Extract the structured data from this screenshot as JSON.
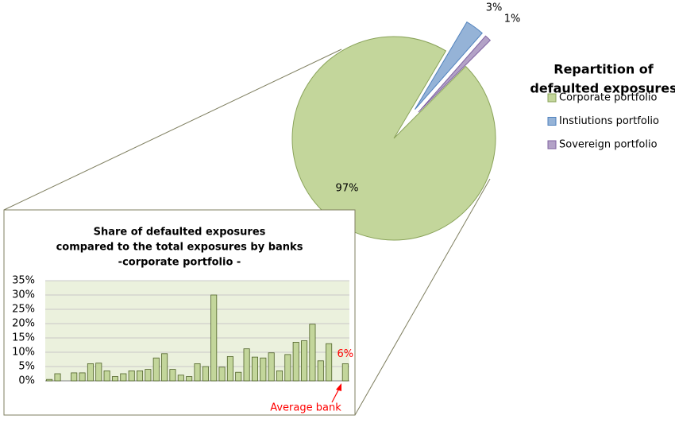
{
  "chart_data": [
    {
      "type": "pie",
      "legend_title": [
        "Repartition of",
        "defaulted exposures"
      ],
      "categories": [
        "Corporate portfolio",
        "Instiutions portfolio",
        "Sovereign portfolio"
      ],
      "values": [
        97,
        3,
        1
      ],
      "value_labels": [
        "97%",
        "3%",
        "1%"
      ],
      "colors": [
        "#c3d69b",
        "#95b3d7",
        "#b3a2c7"
      ],
      "legend": "right"
    },
    {
      "type": "bar",
      "title": [
        "Share of defaulted exposures",
        "compared to the total exposures  by banks",
        "-corporate portfolio -"
      ],
      "categories": [
        null,
        null,
        null,
        null,
        null,
        null,
        null,
        null,
        null,
        null,
        null,
        null,
        null,
        null,
        null,
        null,
        null,
        null,
        null,
        null,
        null,
        null,
        null,
        null,
        null,
        null,
        null,
        null,
        null,
        null,
        null,
        null,
        null,
        null,
        null,
        null,
        null
      ],
      "values": [
        0.5,
        2.5,
        null,
        2.8,
        2.8,
        6,
        6.2,
        3.5,
        1.5,
        2.5,
        3.5,
        3.5,
        4,
        8,
        9.5,
        4,
        2,
        1.5,
        6,
        5,
        30,
        4.8,
        8.5,
        3,
        11.2,
        8.3,
        8,
        9.8,
        3.5,
        9.2,
        13.5,
        14,
        19.8,
        7,
        13,
        null,
        6
      ],
      "value_labels": [
        null,
        null,
        null,
        null,
        null,
        null,
        null,
        null,
        null,
        null,
        null,
        null,
        null,
        null,
        null,
        null,
        null,
        null,
        null,
        null,
        null,
        null,
        null,
        null,
        null,
        null,
        null,
        null,
        null,
        null,
        null,
        null,
        null,
        null,
        null,
        null,
        "6%"
      ],
      "color": "#c3d69b",
      "annotation": "Average bank",
      "ylim": [
        0,
        35
      ],
      "yticks": [
        {
          "value": 0,
          "label": "0%"
        },
        {
          "value": 5,
          "label": "5%"
        },
        {
          "value": 10,
          "label": "10%"
        },
        {
          "value": 15,
          "label": "15%"
        },
        {
          "value": 20,
          "label": "20%"
        },
        {
          "value": 25,
          "label": "25%"
        },
        {
          "value": 30,
          "label": "30%"
        },
        {
          "value": 35,
          "label": "35%"
        }
      ],
      "grid": true
    }
  ]
}
